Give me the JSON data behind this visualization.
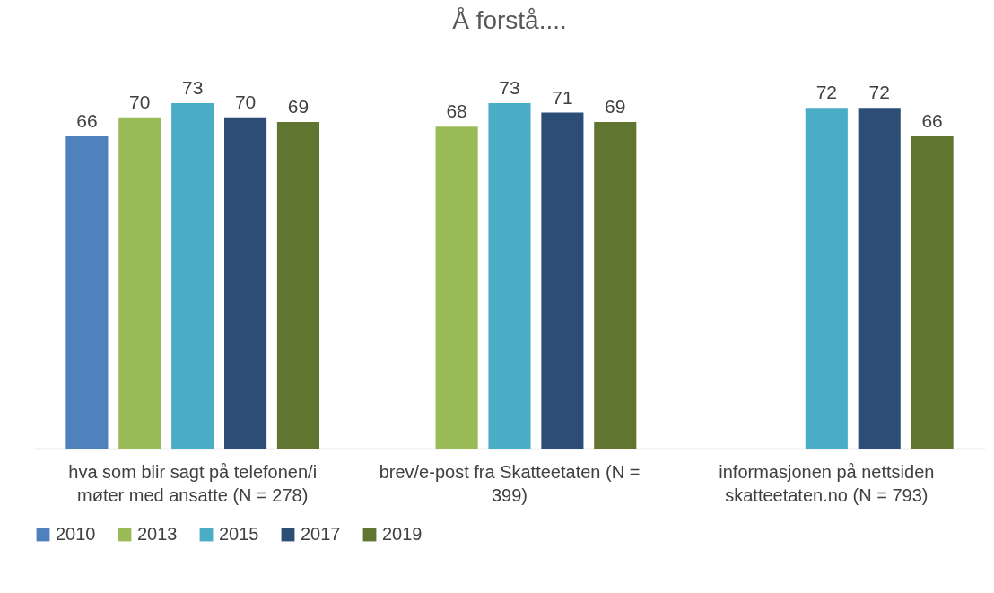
{
  "chart_data": {
    "type": "bar",
    "title": "Å forstå....",
    "categories": [
      "hva som blir sagt på telefonen/i møter med ansatte (N = 278)",
      "brev/e-post fra Skatteetaten (N = 399)",
      "informasjonen på nettsiden skatteetaten.no (N = 793)"
    ],
    "series": [
      {
        "name": "2010",
        "color": "#4f81bd",
        "values": [
          66,
          null,
          null
        ]
      },
      {
        "name": "2013",
        "color": "#9bbb59",
        "values": [
          70,
          68,
          null
        ]
      },
      {
        "name": "2015",
        "color": "#4bacc6",
        "values": [
          73,
          73,
          72
        ]
      },
      {
        "name": "2017",
        "color": "#2c4d75",
        "values": [
          70,
          71,
          72
        ]
      },
      {
        "name": "2019",
        "color": "#5f7530",
        "values": [
          69,
          69,
          66
        ]
      }
    ],
    "data_labels": true,
    "legend": "bottom"
  }
}
